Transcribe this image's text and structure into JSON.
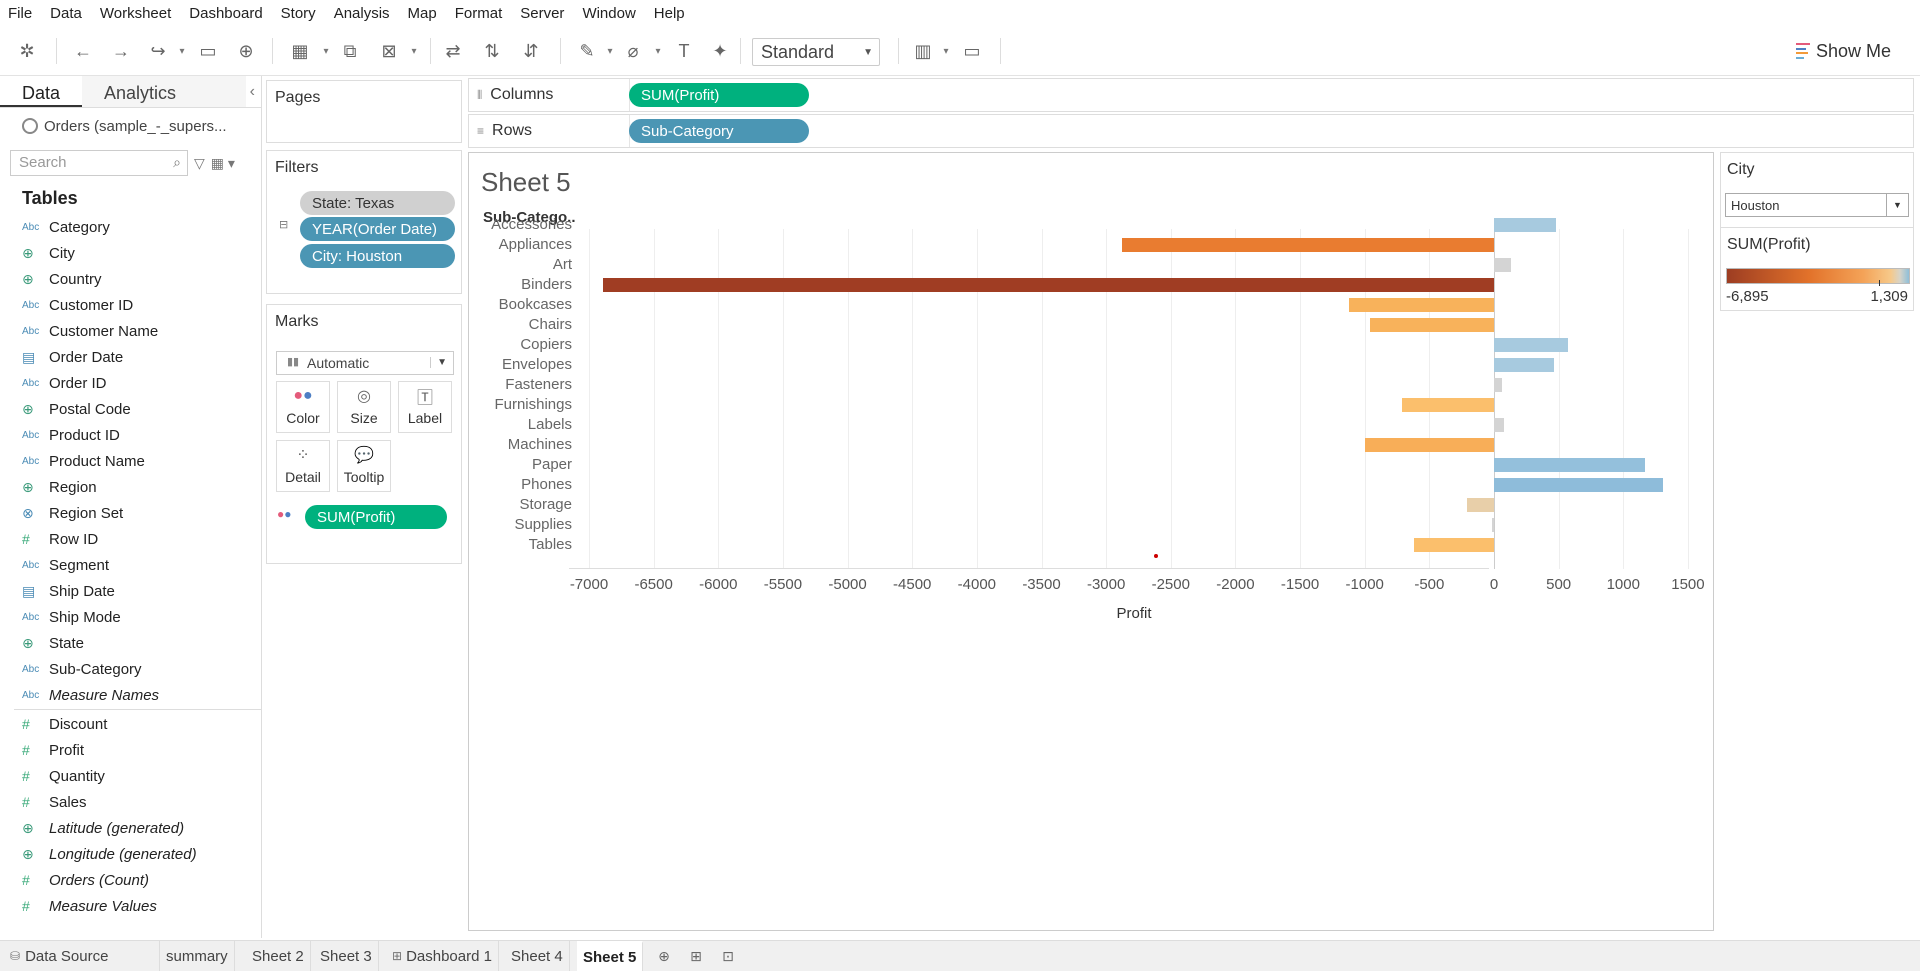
{
  "menu": [
    "File",
    "Data",
    "Worksheet",
    "Dashboard",
    "Story",
    "Analysis",
    "Map",
    "Format",
    "Server",
    "Window",
    "Help"
  ],
  "toolbar": {
    "fit_select": "Standard",
    "show_me": "Show Me"
  },
  "data_pane": {
    "tab_data": "Data",
    "tab_analytics": "Analytics",
    "datasource": "Orders (sample_-_supers...",
    "search_placeholder": "Search",
    "tables_heading": "Tables",
    "dimensions": [
      {
        "type": "Abc",
        "icon": "string-icon",
        "name": "Category"
      },
      {
        "type": "geo",
        "icon": "globe-icon",
        "name": "City"
      },
      {
        "type": "geo",
        "icon": "globe-icon",
        "name": "Country"
      },
      {
        "type": "Abc",
        "icon": "string-icon",
        "name": "Customer ID"
      },
      {
        "type": "Abc",
        "icon": "string-icon",
        "name": "Customer Name"
      },
      {
        "type": "date",
        "icon": "calendar-icon",
        "name": "Order Date"
      },
      {
        "type": "Abc",
        "icon": "string-icon",
        "name": "Order ID"
      },
      {
        "type": "geo",
        "icon": "globe-icon",
        "name": "Postal Code"
      },
      {
        "type": "Abc",
        "icon": "string-icon",
        "name": "Product ID"
      },
      {
        "type": "Abc",
        "icon": "string-icon",
        "name": "Product Name"
      },
      {
        "type": "geo",
        "icon": "globe-icon",
        "name": "Region"
      },
      {
        "type": "set",
        "icon": "set-icon",
        "name": "Region Set"
      },
      {
        "type": "num",
        "icon": "number-icon",
        "name": "Row ID"
      },
      {
        "type": "Abc",
        "icon": "string-icon",
        "name": "Segment"
      },
      {
        "type": "date",
        "icon": "calendar-icon",
        "name": "Ship Date"
      },
      {
        "type": "Abc",
        "icon": "string-icon",
        "name": "Ship Mode"
      },
      {
        "type": "geo",
        "icon": "globe-icon",
        "name": "State"
      },
      {
        "type": "Abc",
        "icon": "string-icon",
        "name": "Sub-Category"
      },
      {
        "type": "Abc",
        "icon": "string-icon",
        "name": "Measure Names",
        "italic": true
      }
    ],
    "measures": [
      {
        "type": "num",
        "icon": "number-icon",
        "name": "Discount"
      },
      {
        "type": "num",
        "icon": "number-icon",
        "name": "Profit"
      },
      {
        "type": "num",
        "icon": "number-icon",
        "name": "Quantity"
      },
      {
        "type": "num",
        "icon": "number-icon",
        "name": "Sales"
      },
      {
        "type": "geo",
        "icon": "globe-icon",
        "name": "Latitude (generated)",
        "italic": true
      },
      {
        "type": "geo",
        "icon": "globe-icon",
        "name": "Longitude (generated)",
        "italic": true
      },
      {
        "type": "num",
        "icon": "number-icon",
        "name": "Orders (Count)",
        "italic": true
      },
      {
        "type": "num",
        "icon": "number-icon",
        "name": "Measure Values",
        "italic": true
      }
    ]
  },
  "pages": {
    "title": "Pages"
  },
  "filters": {
    "title": "Filters",
    "items": [
      "State: Texas",
      "YEAR(Order Date)",
      "City: Houston"
    ]
  },
  "marks": {
    "title": "Marks",
    "type": "Automatic",
    "buttons": [
      "Color",
      "Size",
      "Label",
      "Detail",
      "Tooltip"
    ],
    "color_field": "SUM(Profit)"
  },
  "shelves": {
    "columns_label": "Columns",
    "columns_pill": "SUM(Profit)",
    "rows_label": "Rows",
    "rows_pill": "Sub-Category"
  },
  "viz": {
    "sheet_title": "Sheet 5",
    "category_header": "Sub-Catego.."
  },
  "chart_data": {
    "type": "bar",
    "orientation": "horizontal",
    "categories": [
      "Accessories",
      "Appliances",
      "Art",
      "Binders",
      "Bookcases",
      "Chairs",
      "Copiers",
      "Envelopes",
      "Fasteners",
      "Furnishings",
      "Labels",
      "Machines",
      "Paper",
      "Phones",
      "Storage",
      "Supplies",
      "Tables"
    ],
    "values": [
      480,
      -2880,
      135,
      -6895,
      -1120,
      -960,
      570,
      465,
      60,
      -710,
      80,
      -1000,
      1165,
      1309,
      -210,
      -15,
      -620
    ],
    "colors": [
      "#a7cadf",
      "#e97c30",
      "#d4d4d4",
      "#a03d23",
      "#f8b25b",
      "#f8b25b",
      "#a7cadf",
      "#a7cadf",
      "#d4d4d4",
      "#fbbf6c",
      "#d4d4d4",
      "#f8ae58",
      "#94c0dc",
      "#8ebcda",
      "#e8cfa9",
      "#d4d4d4",
      "#fbbf6c"
    ],
    "xlabel": "Profit",
    "ylabel": "Sub-Catego..",
    "xlim": [
      -7300,
      1700
    ],
    "ticks": [
      -7000,
      -6500,
      -6000,
      -5500,
      -5000,
      -4500,
      -4000,
      -3500,
      -3000,
      -2500,
      -2000,
      -1500,
      -1000,
      -500,
      0,
      500,
      1000,
      1500
    ],
    "grid": true
  },
  "city_filter": {
    "title": "City",
    "value": "Houston"
  },
  "color_legend": {
    "title": "SUM(Profit)",
    "min_label": "-6,895",
    "max_label": "1,309"
  },
  "bottom_tabs": [
    "Data Source",
    "summary",
    "Sheet 2",
    "Sheet 3",
    "Dashboard 1",
    "Sheet 4",
    "Sheet 5"
  ],
  "active_tab": "Sheet 5"
}
